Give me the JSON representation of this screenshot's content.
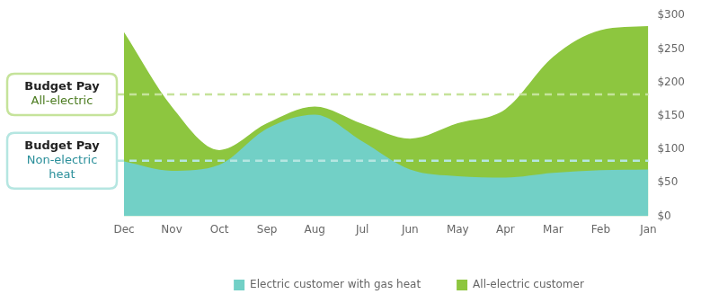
{
  "chart_data": {
    "type": "area",
    "categories": [
      "Dec",
      "Nov",
      "Oct",
      "Sep",
      "Aug",
      "Jul",
      "Jun",
      "May",
      "Apr",
      "Mar",
      "Feb",
      "Jan"
    ],
    "series": [
      {
        "name": "Electric customer with gas heat",
        "color": "#72d0c6",
        "values": [
          82,
          68,
          77,
          131,
          152,
          112,
          70,
          60,
          58,
          65,
          69,
          70
        ]
      },
      {
        "name": "All-electric customer",
        "color": "#8dc63f",
        "values": [
          275,
          164,
          99,
          139,
          164,
          138,
          116,
          139,
          160,
          238,
          278,
          284
        ]
      }
    ],
    "ylim": [
      0,
      300
    ],
    "yticks": [
      {
        "value": 0,
        "label": "$0"
      },
      {
        "value": 50,
        "label": "$50"
      },
      {
        "value": 100,
        "label": "$100"
      },
      {
        "value": 150,
        "label": "$150"
      },
      {
        "value": 200,
        "label": "$200"
      },
      {
        "value": 250,
        "label": "$250"
      },
      {
        "value": 300,
        "label": "$300"
      }
    ],
    "grid": false,
    "legend": "bottom",
    "annotations": [
      {
        "label": [
          "Budget Pay",
          "All-electric"
        ],
        "value": 182,
        "color": "#c5e39a"
      },
      {
        "label": [
          "Budget Pay",
          "Non-electric",
          "heat"
        ],
        "value": 83,
        "color": "#b5e6e1"
      }
    ]
  }
}
